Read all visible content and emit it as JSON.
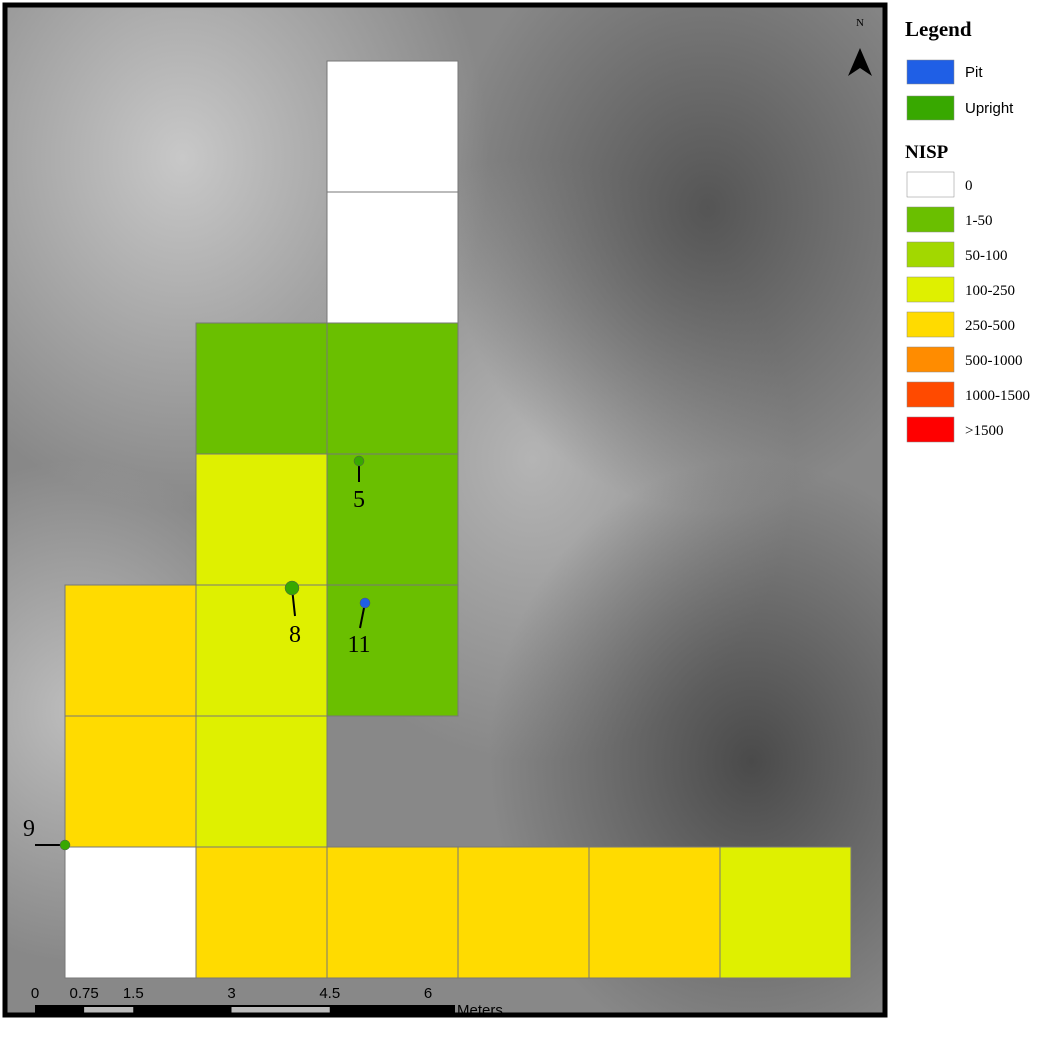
{
  "map": {
    "north_label": "N",
    "legend": {
      "title": "Legend",
      "features": [
        {
          "name": "Pit",
          "color": "#1f5fe6"
        },
        {
          "name": "Upright",
          "color": "#38a800"
        }
      ],
      "nisp_title": "NISP",
      "classes": [
        {
          "name": "0",
          "color": "#ffffff"
        },
        {
          "name": "1-50",
          "color": "#6abf00"
        },
        {
          "name": "50-100",
          "color": "#a2d800"
        },
        {
          "name": "100-250",
          "color": "#dff000"
        },
        {
          "name": "250-500",
          "color": "#ffdb00"
        },
        {
          "name": "500-1000",
          "color": "#ff8c00"
        },
        {
          "name": "1000-1500",
          "color": "#ff4a00"
        },
        {
          "name": ">1500",
          "color": "#ff0000"
        }
      ]
    },
    "point_labels": [
      "5",
      "8",
      "11",
      "9"
    ],
    "scale_bar": {
      "ticks": [
        0,
        0.75,
        1.5,
        3,
        4.5,
        6
      ],
      "unit": "Meters"
    }
  }
}
